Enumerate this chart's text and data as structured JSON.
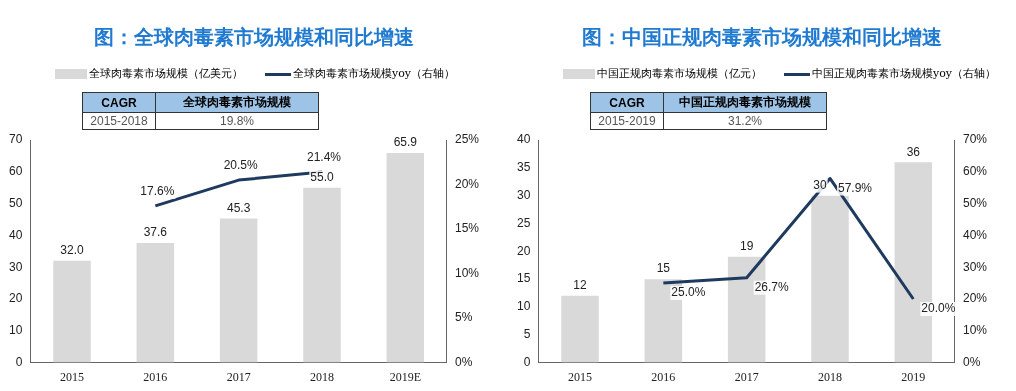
{
  "chart_data": [
    {
      "type": "bar",
      "title": "图：全球肉毒素市场规模和同比增速",
      "categories": [
        "2015",
        "2016",
        "2017",
        "2018",
        "2019E"
      ],
      "series": [
        {
          "name": "全球肉毒素市场规模（亿美元）",
          "color": "#d9d9d9",
          "values": [
            32.0,
            37.6,
            45.3,
            55.0,
            65.9
          ],
          "value_labels": [
            "32.0",
            "37.6",
            "45.3",
            "55.0",
            "65.9"
          ]
        },
        {
          "type": "line",
          "axis": "y2",
          "name": "全球肉毒素市场规模yoy（右轴）",
          "color": "#1f3a5f",
          "values": [
            null,
            17.6,
            20.5,
            21.4,
            null
          ],
          "value_labels": [
            null,
            "17.6%",
            "20.5%",
            "21.4%",
            null
          ]
        }
      ],
      "ylim": [
        0,
        70
      ],
      "yticks": [
        0,
        10,
        20,
        30,
        40,
        50,
        60,
        70
      ],
      "y2lim": [
        0,
        25
      ],
      "y2ticks": [
        {
          "value": 0,
          "label": "0%"
        },
        {
          "value": 5,
          "label": "5%"
        },
        {
          "value": 10,
          "label": "10%"
        },
        {
          "value": 15,
          "label": "15%"
        },
        {
          "value": 20,
          "label": "20%"
        },
        {
          "value": 25,
          "label": "25%"
        }
      ],
      "annotations": [
        "CAGR",
        "全球肉毒素市场规模",
        "2015-2018",
        "19.8%"
      ],
      "grid": false,
      "legend": "top",
      "marker": "none"
    },
    {
      "type": "bar",
      "title": "图：中国正规肉毒素市场规模和同比增速",
      "categories": [
        "2015",
        "2016",
        "2017",
        "2018",
        "2019"
      ],
      "series": [
        {
          "name": "中国正规肉毒素市场规模（亿元）",
          "color": "#d9d9d9",
          "values": [
            12,
            15,
            19,
            30,
            36
          ],
          "value_labels": [
            "12",
            "15",
            "19",
            "30",
            "36"
          ]
        },
        {
          "type": "line",
          "axis": "y2",
          "name": "中国正规肉毒素市场规模yoy（右轴）",
          "color": "#1f3a5f",
          "values": [
            null,
            25.0,
            26.7,
            57.9,
            20.0
          ],
          "value_labels": [
            null,
            "25.0%",
            "26.7%",
            "57.9%",
            "20.0%"
          ]
        }
      ],
      "ylim": [
        0,
        40
      ],
      "yticks": [
        0,
        5,
        10,
        15,
        20,
        25,
        30,
        35,
        40
      ],
      "y2lim": [
        0,
        70
      ],
      "y2ticks": [
        {
          "value": 0,
          "label": "0%"
        },
        {
          "value": 10,
          "label": "10%"
        },
        {
          "value": 20,
          "label": "20%"
        },
        {
          "value": 30,
          "label": "30%"
        },
        {
          "value": 40,
          "label": "40%"
        },
        {
          "value": 50,
          "label": "50%"
        },
        {
          "value": 60,
          "label": "60%"
        },
        {
          "value": 70,
          "label": "70%"
        }
      ],
      "annotations": [
        "CAGR",
        "中国正规肉毒素市场规模",
        "2015-2019",
        "31.2%"
      ],
      "grid": false,
      "legend": "top",
      "marker": "none"
    }
  ]
}
